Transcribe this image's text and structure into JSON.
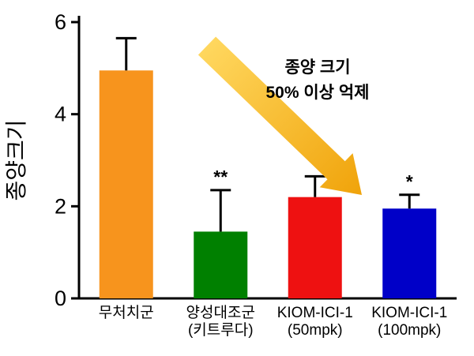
{
  "chart_data": {
    "type": "bar",
    "title": "",
    "xlabel": "",
    "ylabel": "종양크기",
    "ylim": [
      0,
      6
    ],
    "yticks": [
      0,
      2,
      4,
      6
    ],
    "grid": false,
    "legend": "none",
    "categories": [
      [
        "무처치군"
      ],
      [
        "양성대조군",
        "(키트루다)"
      ],
      [
        "KIOM-ICI-1",
        "(50mpk)"
      ],
      [
        "KIOM-ICI-1",
        "(100mpk)"
      ]
    ],
    "values": [
      4.95,
      1.45,
      2.2,
      1.95
    ],
    "errors_upper": [
      0.7,
      0.9,
      0.45,
      0.3
    ],
    "significance": [
      "",
      "**",
      "*",
      "*"
    ],
    "bar_colors": [
      "#F7941D",
      "#008000",
      "#EE1111",
      "#0000C8"
    ],
    "axis_color": "#000000",
    "annotation": {
      "lines": [
        "종양 크기",
        "50% 이상 억제"
      ],
      "arrow_color_start": "#FFD75E",
      "arrow_color_end": "#F0A30A"
    }
  }
}
